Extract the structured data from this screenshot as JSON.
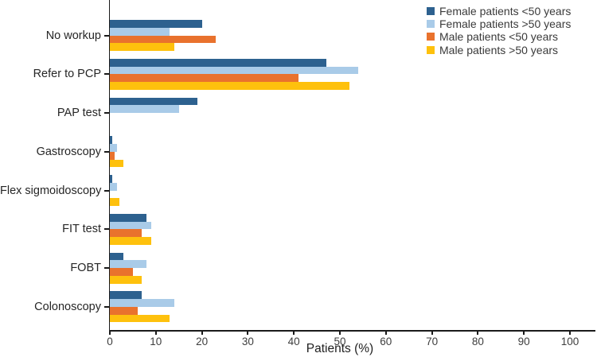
{
  "figure": {
    "background": "#ffffff",
    "axis_color": "#1a1a1a"
  },
  "chart_data": {
    "type": "bar",
    "orientation": "horizontal",
    "title": "",
    "xlabel": "Patients (%)",
    "ylabel": "",
    "xlim": [
      0,
      105
    ],
    "xticks": [
      0,
      10,
      20,
      30,
      40,
      50,
      60,
      70,
      80,
      90,
      100
    ],
    "grid": false,
    "legend_position": "top-right",
    "categories": [
      "No workup",
      "Refer to PCP",
      "PAP test",
      "Gastroscopy",
      "Flex sigmoidoscopy",
      "FIT test",
      "FOBT",
      "Colonoscopy"
    ],
    "series": [
      {
        "name": "Female patients <50 years",
        "color": "#2d618f",
        "values": [
          20,
          47,
          19,
          0.5,
          0.5,
          8,
          3,
          7
        ]
      },
      {
        "name": "Female patients >50 years",
        "color": "#a9cbe8",
        "values": [
          13,
          54,
          15,
          1.5,
          1.5,
          9,
          8,
          14
        ]
      },
      {
        "name": "Male patients <50 years",
        "color": "#e9722d",
        "values": [
          23,
          41,
          0,
          1,
          0,
          7,
          5,
          6
        ]
      },
      {
        "name": "Male patients >50 years",
        "color": "#fec10d",
        "values": [
          14,
          52,
          0,
          3,
          2,
          9,
          7,
          13
        ]
      }
    ]
  }
}
